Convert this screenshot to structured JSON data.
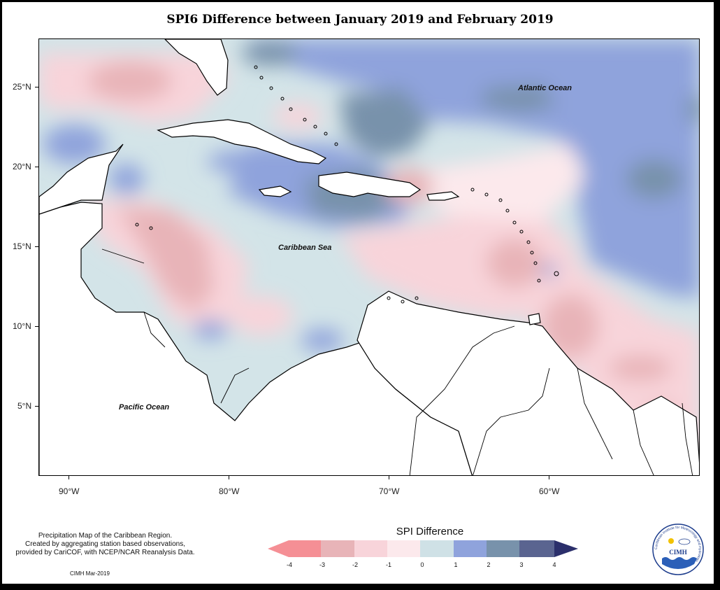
{
  "title": "SPI6 Difference between January 2019 and February 2019",
  "map": {
    "lat_ticks": [
      {
        "label": "25°N",
        "value": 25
      },
      {
        "label": "20°N",
        "value": 20
      },
      {
        "label": "15°N",
        "value": 15
      },
      {
        "label": "10°N",
        "value": 10
      },
      {
        "label": "5°N",
        "value": 5
      }
    ],
    "lon_ticks": [
      {
        "label": "90°W",
        "value": -90
      },
      {
        "label": "80°W",
        "value": -80
      },
      {
        "label": "70°W",
        "value": -70
      },
      {
        "label": "60°W",
        "value": -60
      }
    ],
    "labels": {
      "atlantic": "Atlantic Ocean",
      "caribbean": "Caribbean Sea",
      "pacific": "Pacific Ocean"
    }
  },
  "legend": {
    "title": "SPI Difference",
    "tick_labels": [
      "-4",
      "-3",
      "-2",
      "-1",
      "0",
      "1",
      "2",
      "3",
      "4"
    ],
    "colors": [
      "#f58f95",
      "#e8b4b8",
      "#f8d4da",
      "#fce9ec",
      "#cfe1e6",
      "#8fa3dc",
      "#7892ab",
      "#5a6490",
      "#2b2f6b"
    ]
  },
  "notes": {
    "line1": "Precipitation Map of the Caribbean Region.",
    "line2": "Created by aggregating station based observations,",
    "line3": "provided by CariCOF, with NCEP/NCAR Reanalysis Data.",
    "credit": "CIMH Mar-2019"
  },
  "logo": {
    "ring_text": "Caribbean Institute for Meteorology and Hydrology",
    "acronym": "CIMH"
  }
}
